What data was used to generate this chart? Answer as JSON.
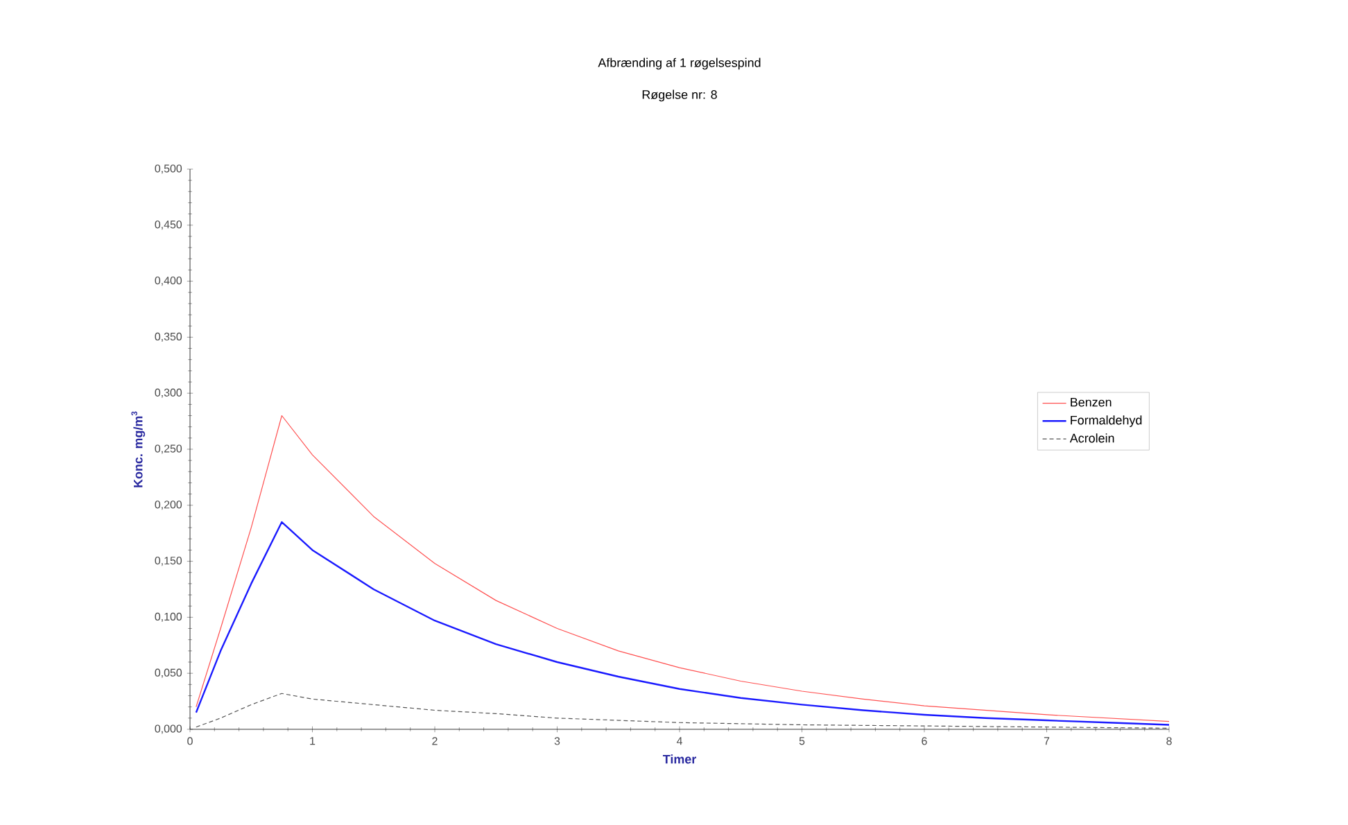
{
  "chart_data": {
    "type": "line",
    "title": "Afbrænding af 1 røgelsespind",
    "subtitle": "Røgelse nr: 8",
    "xlabel": "Timer",
    "ylabel": "Konc. mg/m$^{3}$",
    "xlim": [
      0,
      8
    ],
    "xticks": [
      0,
      1,
      2,
      3,
      4,
      5,
      6,
      7,
      8
    ],
    "ylim": [
      0,
      0.5
    ],
    "yticks": [
      {
        "value": 0,
        "label": "0,000"
      },
      {
        "value": 0.05,
        "label": "0,050"
      },
      {
        "value": 0.1,
        "label": "0,100"
      },
      {
        "value": 0.15,
        "label": "0,150"
      },
      {
        "value": 0.2,
        "label": "0,200"
      },
      {
        "value": 0.25,
        "label": "0,250"
      },
      {
        "value": 0.3,
        "label": "0,300"
      },
      {
        "value": 0.35,
        "label": "0,350"
      },
      {
        "value": 0.4,
        "label": "0,400"
      },
      {
        "value": 0.45,
        "label": "0,450"
      },
      {
        "value": 0.5,
        "label": "0,500"
      }
    ],
    "grid": false,
    "legend": "right",
    "marker": "none",
    "series": [
      {
        "name": "Benzen",
        "color": "#ff5050",
        "line_style": "solid",
        "x": [
          0.05,
          0.25,
          0.5,
          0.75,
          1,
          1.5,
          2,
          2.5,
          3,
          3.5,
          4,
          4.5,
          5,
          5.5,
          6,
          6.5,
          7,
          7.5,
          8
        ],
        "values": [
          0.02,
          0.09,
          0.18,
          0.28,
          0.245,
          0.19,
          0.148,
          0.115,
          0.09,
          0.07,
          0.055,
          0.043,
          0.034,
          0.027,
          0.021,
          0.017,
          0.013,
          0.01,
          0.007
        ]
      },
      {
        "name": "Formaldehyd",
        "color": "#1a1aff",
        "line_style": "solid",
        "x": [
          0.05,
          0.25,
          0.5,
          0.75,
          1,
          1.5,
          2,
          2.5,
          3,
          3.5,
          4,
          4.5,
          5,
          5.5,
          6,
          6.5,
          7,
          7.5,
          8
        ],
        "values": [
          0.015,
          0.07,
          0.13,
          0.185,
          0.16,
          0.125,
          0.097,
          0.076,
          0.06,
          0.047,
          0.036,
          0.028,
          0.022,
          0.017,
          0.013,
          0.01,
          0.008,
          0.006,
          0.004
        ]
      },
      {
        "name": "Acrolein",
        "color": "#555555",
        "line_style": "dashed",
        "x": [
          0.05,
          0.25,
          0.5,
          0.75,
          1,
          1.5,
          2,
          2.5,
          3,
          3.5,
          4,
          5,
          6,
          7,
          8
        ],
        "values": [
          0.002,
          0.01,
          0.022,
          0.032,
          0.027,
          0.022,
          0.017,
          0.014,
          0.01,
          0.008,
          0.006,
          0.004,
          0.003,
          0.002,
          0.001
        ]
      }
    ]
  }
}
